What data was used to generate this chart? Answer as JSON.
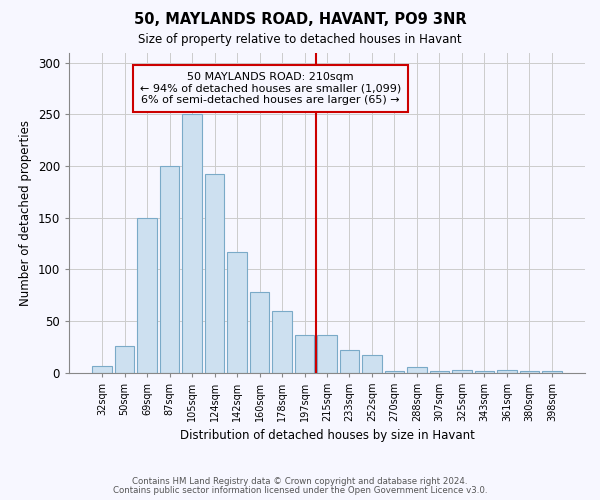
{
  "title": "50, MAYLANDS ROAD, HAVANT, PO9 3NR",
  "subtitle": "Size of property relative to detached houses in Havant",
  "xlabel": "Distribution of detached houses by size in Havant",
  "ylabel": "Number of detached properties",
  "footnote1": "Contains HM Land Registry data © Crown copyright and database right 2024.",
  "footnote2": "Contains public sector information licensed under the Open Government Licence v3.0.",
  "bar_labels": [
    "32sqm",
    "50sqm",
    "69sqm",
    "87sqm",
    "105sqm",
    "124sqm",
    "142sqm",
    "160sqm",
    "178sqm",
    "197sqm",
    "215sqm",
    "233sqm",
    "252sqm",
    "270sqm",
    "288sqm",
    "307sqm",
    "325sqm",
    "343sqm",
    "361sqm",
    "380sqm",
    "398sqm"
  ],
  "bar_heights": [
    6,
    26,
    150,
    200,
    250,
    192,
    117,
    78,
    60,
    36,
    36,
    22,
    17,
    1,
    5,
    1,
    2,
    1,
    2,
    1,
    1
  ],
  "bar_color": "#cde0f0",
  "bar_edge_color": "#7aaac8",
  "grid_color": "#cccccc",
  "vline_color": "#cc0000",
  "annotation_text": "50 MAYLANDS ROAD: 210sqm\n← 94% of detached houses are smaller (1,099)\n6% of semi-detached houses are larger (65) →",
  "annotation_box_color": "#cc0000",
  "annotation_text_color": "#000000",
  "ylim": [
    0,
    310
  ],
  "yticks": [
    0,
    50,
    100,
    150,
    200,
    250,
    300
  ],
  "background_color": "#f7f7ff"
}
